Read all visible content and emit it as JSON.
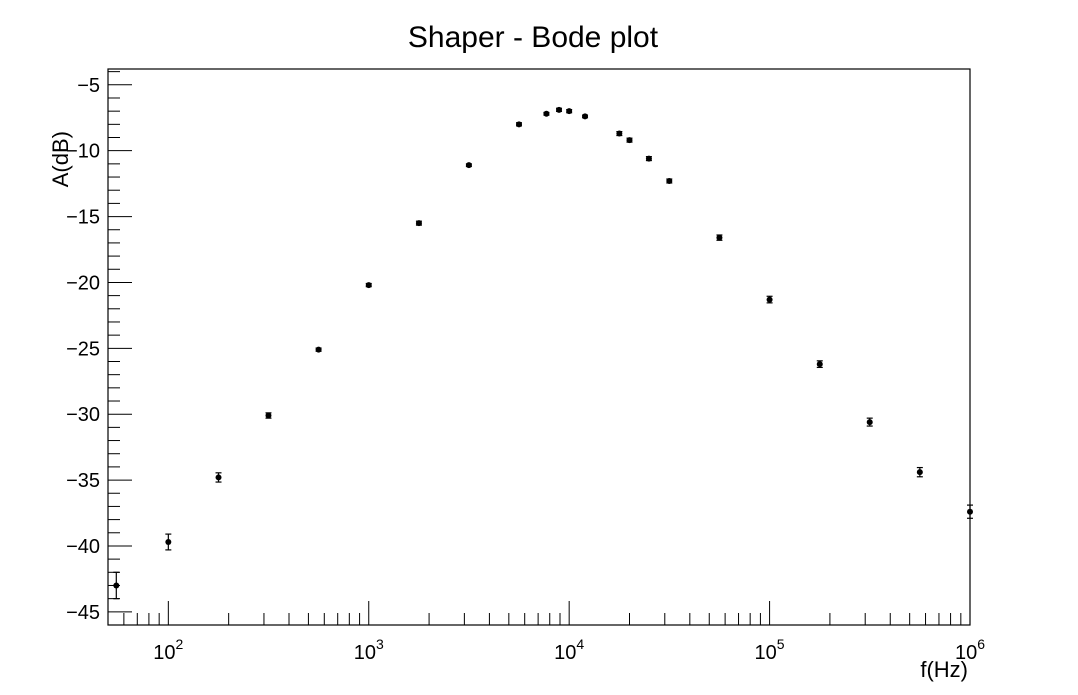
{
  "chart_data": {
    "type": "scatter",
    "title": "Shaper - Bode plot",
    "xlabel": "f(Hz)",
    "ylabel": "A(dB)",
    "x_scale": "log",
    "xlim": [
      50,
      1000000
    ],
    "ylim": [
      -46,
      -3.8
    ],
    "grid": false,
    "x_tick_labels": [
      {
        "base": "10",
        "exp": "2",
        "value": 100
      },
      {
        "base": "10",
        "exp": "3",
        "value": 1000
      },
      {
        "base": "10",
        "exp": "4",
        "value": 10000
      },
      {
        "base": "10",
        "exp": "5",
        "value": 100000
      },
      {
        "base": "10",
        "exp": "6",
        "value": 1000000
      }
    ],
    "y_tick_labels": [
      {
        "label": "−5",
        "value": -5
      },
      {
        "label": "−10",
        "value": -10
      },
      {
        "label": "−15",
        "value": -15
      },
      {
        "label": "−20",
        "value": -20
      },
      {
        "label": "−25",
        "value": -25
      },
      {
        "label": "−30",
        "value": -30
      },
      {
        "label": "−35",
        "value": -35
      },
      {
        "label": "−40",
        "value": -40
      },
      {
        "label": "−45",
        "value": -45
      }
    ],
    "series": [
      {
        "points": [
          {
            "x": 55,
            "y": -43.0,
            "err": 1.0
          },
          {
            "x": 100,
            "y": -39.7,
            "err": 0.6
          },
          {
            "x": 178,
            "y": -34.8,
            "err": 0.35
          },
          {
            "x": 316,
            "y": -30.1,
            "err": 0.2
          },
          {
            "x": 562,
            "y": -25.1,
            "err": 0.12
          },
          {
            "x": 1000,
            "y": -20.2,
            "err": 0.12
          },
          {
            "x": 1780,
            "y": -15.5,
            "err": 0.15
          },
          {
            "x": 3160,
            "y": -11.1,
            "err": 0.1
          },
          {
            "x": 5620,
            "y": -8.0,
            "err": 0.12
          },
          {
            "x": 7700,
            "y": -7.2,
            "err": 0.1
          },
          {
            "x": 8900,
            "y": -6.9,
            "err": 0.12
          },
          {
            "x": 10000,
            "y": -7.0,
            "err": 0.12
          },
          {
            "x": 12000,
            "y": -7.4,
            "err": 0.1
          },
          {
            "x": 17800,
            "y": -8.7,
            "err": 0.15
          },
          {
            "x": 20000,
            "y": -9.2,
            "err": 0.15
          },
          {
            "x": 25000,
            "y": -10.6,
            "err": 0.15
          },
          {
            "x": 31600,
            "y": -12.3,
            "err": 0.15
          },
          {
            "x": 56200,
            "y": -16.6,
            "err": 0.2
          },
          {
            "x": 100000,
            "y": -21.3,
            "err": 0.25
          },
          {
            "x": 178000,
            "y": -26.2,
            "err": 0.25
          },
          {
            "x": 316000,
            "y": -30.6,
            "err": 0.3
          },
          {
            "x": 562000,
            "y": -34.4,
            "err": 0.35
          },
          {
            "x": 1000000,
            "y": -37.4,
            "err": 0.5
          }
        ]
      }
    ]
  }
}
